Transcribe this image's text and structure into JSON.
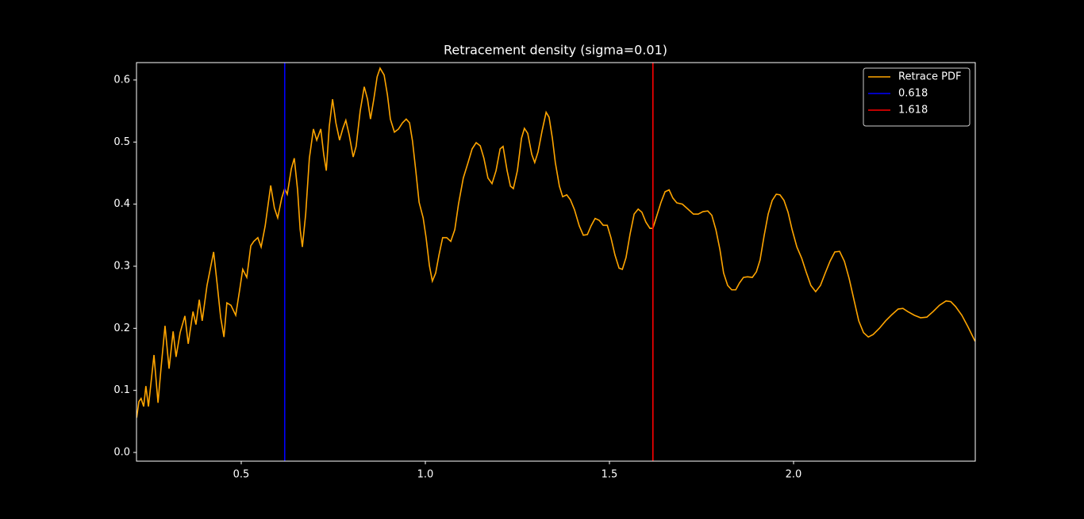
{
  "chart_data": {
    "type": "line",
    "title": "Retracement density (sigma=0.01)",
    "x": [
      0.216,
      0.222,
      0.228,
      0.235,
      0.241,
      0.248,
      0.263,
      0.274,
      0.282,
      0.293,
      0.304,
      0.315,
      0.323,
      0.334,
      0.347,
      0.356,
      0.369,
      0.377,
      0.386,
      0.394,
      0.407,
      0.425,
      0.435,
      0.444,
      0.453,
      0.461,
      0.472,
      0.485,
      0.496,
      0.504,
      0.515,
      0.526,
      0.534,
      0.545,
      0.554,
      0.565,
      0.58,
      0.59,
      0.599,
      0.61,
      0.618,
      0.625,
      0.636,
      0.644,
      0.653,
      0.66,
      0.666,
      0.675,
      0.685,
      0.696,
      0.705,
      0.716,
      0.724,
      0.731,
      0.739,
      0.748,
      0.757,
      0.767,
      0.776,
      0.784,
      0.793,
      0.804,
      0.812,
      0.823,
      0.834,
      0.843,
      0.851,
      0.86,
      0.869,
      0.877,
      0.888,
      0.897,
      0.905,
      0.916,
      0.927,
      0.938,
      0.948,
      0.957,
      0.965,
      0.974,
      0.983,
      0.994,
      1.002,
      1.011,
      1.019,
      1.028,
      1.037,
      1.047,
      1.058,
      1.069,
      1.08,
      1.09,
      1.103,
      1.116,
      1.127,
      1.138,
      1.149,
      1.159,
      1.17,
      1.181,
      1.192,
      1.203,
      1.211,
      1.222,
      1.231,
      1.239,
      1.25,
      1.261,
      1.269,
      1.278,
      1.289,
      1.297,
      1.306,
      1.317,
      1.328,
      1.336,
      1.345,
      1.353,
      1.364,
      1.373,
      1.384,
      1.394,
      1.405,
      1.418,
      1.429,
      1.44,
      1.45,
      1.461,
      1.472,
      1.483,
      1.494,
      1.504,
      1.515,
      1.526,
      1.535,
      1.545,
      1.556,
      1.567,
      1.578,
      1.588,
      1.599,
      1.61,
      1.618,
      1.629,
      1.64,
      1.651,
      1.662,
      1.672,
      1.683,
      1.698,
      1.713,
      1.728,
      1.741,
      1.754,
      1.767,
      1.778,
      1.789,
      1.8,
      1.81,
      1.821,
      1.832,
      1.843,
      1.853,
      1.864,
      1.875,
      1.888,
      1.899,
      1.909,
      1.92,
      1.931,
      1.942,
      1.953,
      1.963,
      1.974,
      1.985,
      1.996,
      2.009,
      2.022,
      2.034,
      2.047,
      2.06,
      2.073,
      2.086,
      2.099,
      2.112,
      2.125,
      2.138,
      2.151,
      2.164,
      2.177,
      2.19,
      2.203,
      2.216,
      2.233,
      2.25,
      2.267,
      2.284,
      2.297,
      2.31,
      2.328,
      2.345,
      2.362,
      2.379,
      2.396,
      2.414,
      2.427,
      2.44,
      2.457,
      2.474,
      2.493
    ],
    "series": [
      {
        "name": "Retrace PDF",
        "color": "#ffa500",
        "values": [
          0.056,
          0.082,
          0.087,
          0.074,
          0.107,
          0.074,
          0.157,
          0.08,
          0.135,
          0.204,
          0.135,
          0.195,
          0.154,
          0.193,
          0.22,
          0.175,
          0.227,
          0.206,
          0.246,
          0.212,
          0.269,
          0.323,
          0.269,
          0.218,
          0.186,
          0.241,
          0.237,
          0.221,
          0.263,
          0.295,
          0.282,
          0.333,
          0.34,
          0.346,
          0.331,
          0.365,
          0.43,
          0.394,
          0.378,
          0.41,
          0.425,
          0.416,
          0.457,
          0.474,
          0.423,
          0.359,
          0.331,
          0.384,
          0.474,
          0.521,
          0.503,
          0.521,
          0.48,
          0.454,
          0.525,
          0.569,
          0.531,
          0.503,
          0.522,
          0.535,
          0.512,
          0.476,
          0.493,
          0.55,
          0.589,
          0.569,
          0.537,
          0.569,
          0.605,
          0.619,
          0.608,
          0.576,
          0.537,
          0.516,
          0.521,
          0.531,
          0.537,
          0.531,
          0.502,
          0.454,
          0.403,
          0.378,
          0.346,
          0.301,
          0.276,
          0.289,
          0.318,
          0.346,
          0.346,
          0.34,
          0.359,
          0.4,
          0.442,
          0.467,
          0.489,
          0.499,
          0.494,
          0.474,
          0.442,
          0.433,
          0.454,
          0.489,
          0.493,
          0.454,
          0.429,
          0.425,
          0.454,
          0.506,
          0.522,
          0.514,
          0.48,
          0.467,
          0.484,
          0.518,
          0.548,
          0.54,
          0.506,
          0.467,
          0.429,
          0.412,
          0.415,
          0.407,
          0.391,
          0.365,
          0.35,
          0.351,
          0.365,
          0.377,
          0.374,
          0.366,
          0.366,
          0.346,
          0.318,
          0.297,
          0.295,
          0.314,
          0.352,
          0.384,
          0.392,
          0.387,
          0.371,
          0.361,
          0.361,
          0.382,
          0.403,
          0.42,
          0.423,
          0.41,
          0.402,
          0.4,
          0.392,
          0.384,
          0.384,
          0.388,
          0.389,
          0.382,
          0.359,
          0.327,
          0.289,
          0.269,
          0.262,
          0.262,
          0.273,
          0.282,
          0.283,
          0.282,
          0.291,
          0.31,
          0.349,
          0.384,
          0.406,
          0.416,
          0.415,
          0.406,
          0.387,
          0.359,
          0.331,
          0.313,
          0.291,
          0.269,
          0.259,
          0.269,
          0.289,
          0.308,
          0.323,
          0.324,
          0.308,
          0.28,
          0.246,
          0.212,
          0.193,
          0.186,
          0.19,
          0.2,
          0.212,
          0.222,
          0.231,
          0.232,
          0.227,
          0.221,
          0.217,
          0.218,
          0.227,
          0.237,
          0.244,
          0.243,
          0.235,
          0.221,
          0.202,
          0.179
        ]
      }
    ],
    "vlines": [
      {
        "name": "0.618",
        "x": 0.618,
        "color": "#0000ff"
      },
      {
        "name": "1.618",
        "x": 1.618,
        "color": "#ff0000"
      }
    ],
    "xlim": [
      0.2155,
      2.4935
    ],
    "ylim": [
      -0.014,
      0.628
    ],
    "xticks": [
      0.5,
      {
        "value": 1,
        "label": "1.0"
      },
      1.5,
      {
        "value": 2,
        "label": "2.0"
      }
    ],
    "yticks": [
      {
        "value": 0,
        "label": "0.0"
      },
      0.1,
      0.2,
      0.3,
      0.4,
      0.5,
      0.6
    ],
    "legend": "upper right"
  }
}
